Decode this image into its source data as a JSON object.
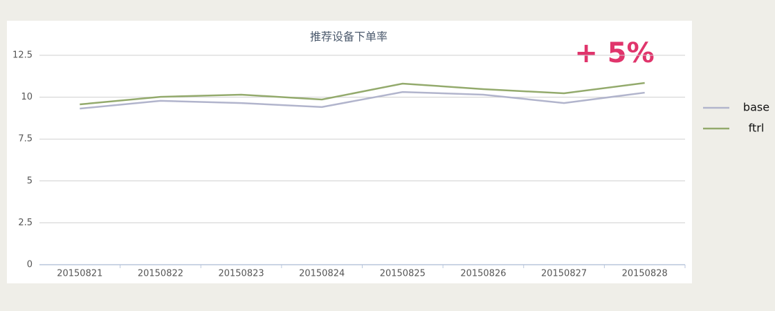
{
  "chart_data": {
    "type": "line",
    "title": "推荐设备下单率",
    "annotation": "+ 5%",
    "categories": [
      "20150821",
      "20150822",
      "20150823",
      "20150824",
      "20150825",
      "20150826",
      "20150827",
      "20150828"
    ],
    "series": [
      {
        "name": "base",
        "color": "#b1b4cc",
        "values": [
          9.32,
          9.78,
          9.65,
          9.41,
          10.31,
          10.15,
          9.65,
          10.27
        ]
      },
      {
        "name": "ftrl",
        "color": "#93aa6c",
        "values": [
          9.57,
          10.02,
          10.15,
          9.86,
          10.81,
          10.48,
          10.23,
          10.85
        ]
      }
    ],
    "ylim": [
      0,
      12.5
    ],
    "yticks": [
      0,
      2.5,
      5,
      7.5,
      10,
      12.5
    ],
    "grid": true,
    "legend": "right"
  }
}
